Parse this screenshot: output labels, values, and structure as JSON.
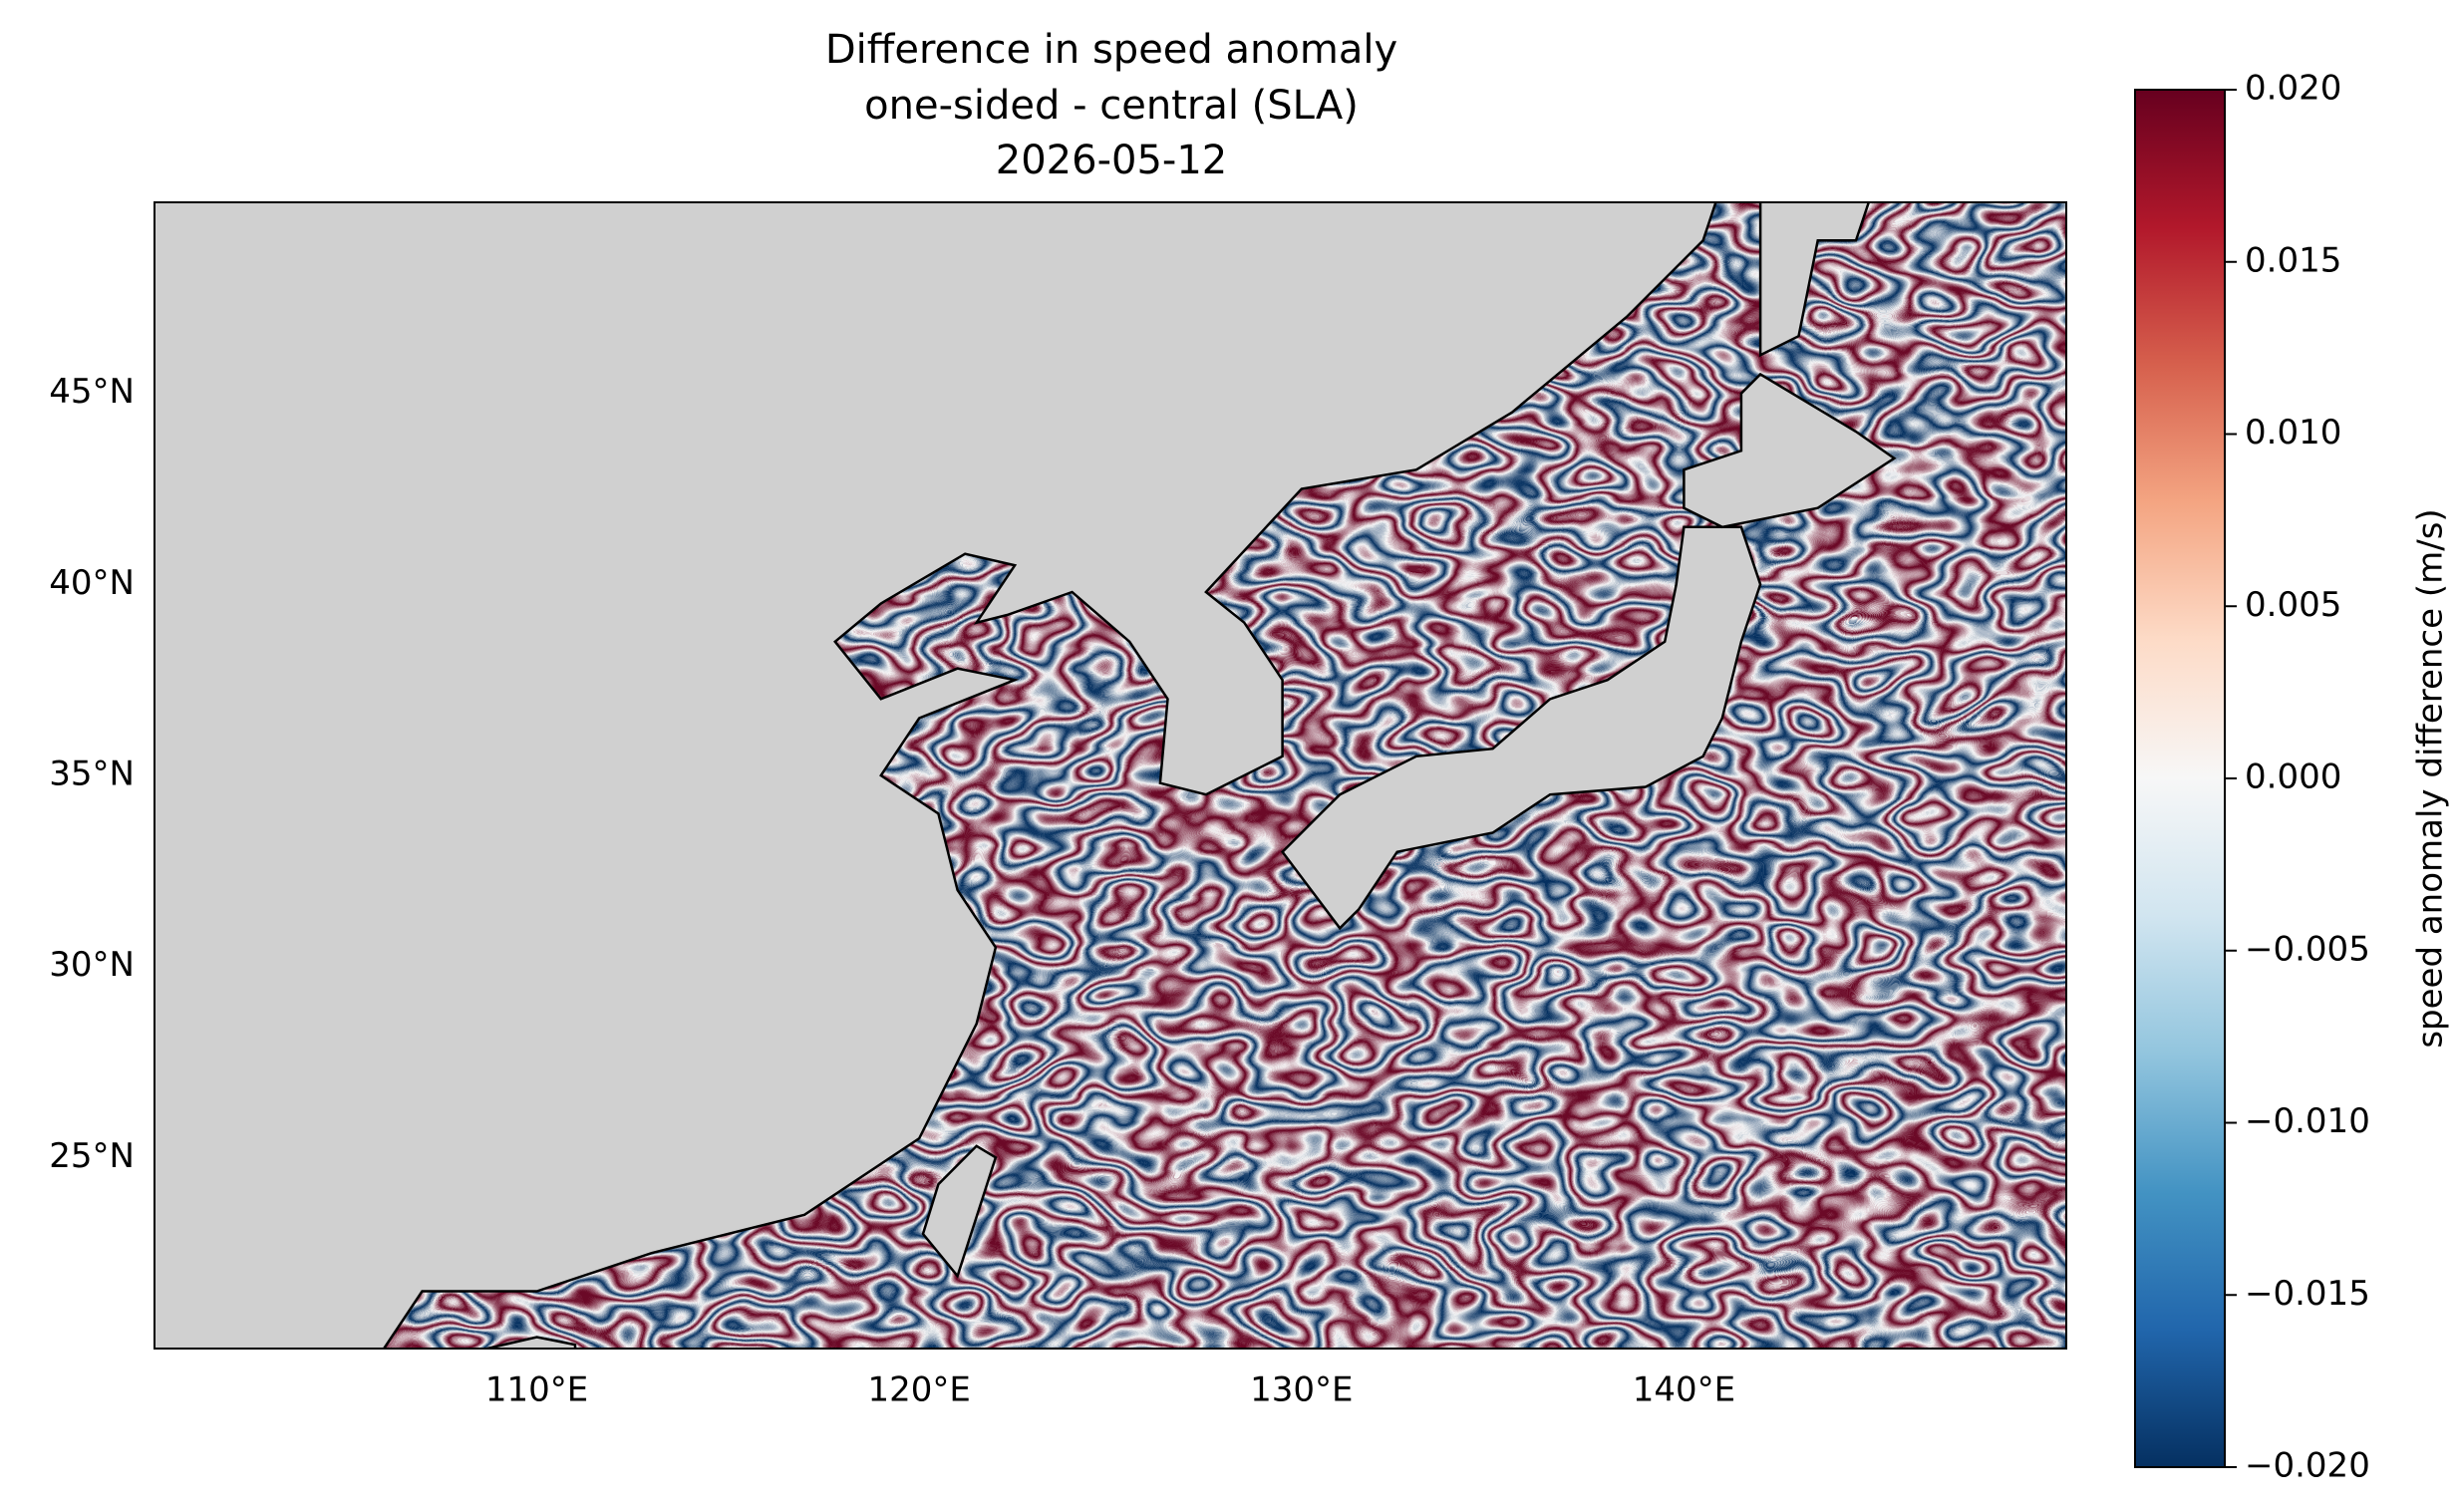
{
  "chart_data": {
    "type": "map",
    "title": [
      "Difference in speed anomaly",
      "one-sided - central (SLA)",
      "2026-05-12"
    ],
    "xlim": [
      100,
      150
    ],
    "ylim": [
      20,
      50
    ],
    "xticks": [
      {
        "value": 110,
        "label": "110°E"
      },
      {
        "value": 120,
        "label": "120°E"
      },
      {
        "value": 130,
        "label": "130°E"
      },
      {
        "value": 140,
        "label": "140°E"
      }
    ],
    "yticks": [
      {
        "value": 25,
        "label": "25°N"
      },
      {
        "value": 30,
        "label": "30°N"
      },
      {
        "value": 35,
        "label": "35°N"
      },
      {
        "value": 40,
        "label": "40°N"
      },
      {
        "value": 45,
        "label": "45°N"
      }
    ],
    "colorbar": {
      "label": "speed anomaly difference (m/s)",
      "lim": [
        -0.02,
        0.02
      ],
      "ticks": [
        {
          "value": -0.02,
          "label": "−0.020"
        },
        {
          "value": -0.015,
          "label": "−0.015"
        },
        {
          "value": -0.01,
          "label": "−0.010"
        },
        {
          "value": -0.005,
          "label": "−0.005"
        },
        {
          "value": 0,
          "label": "0.000"
        },
        {
          "value": 0.005,
          "label": "0.005"
        },
        {
          "value": 0.01,
          "label": "0.010"
        },
        {
          "value": 0.015,
          "label": "0.015"
        },
        {
          "value": 0.02,
          "label": "0.020"
        }
      ]
    }
  }
}
